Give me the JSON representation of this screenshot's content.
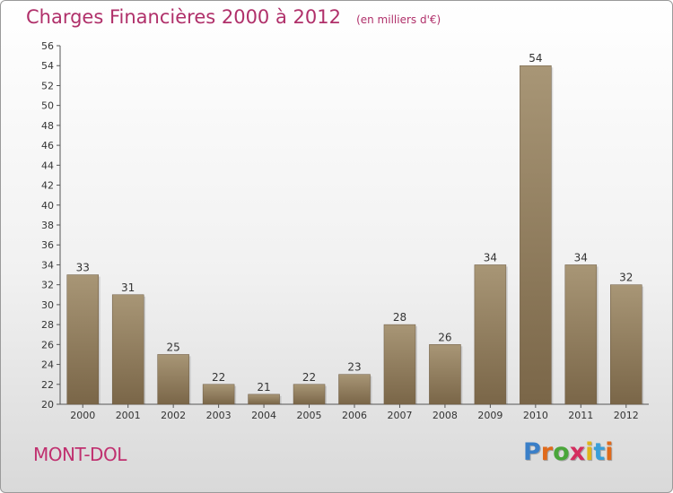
{
  "header": {
    "title": "Charges Financières 2000 à 2012",
    "subtitle": "(en milliers d'€)"
  },
  "footer": {
    "commune": "MONT-DOL",
    "logo_letters": [
      "P",
      "r",
      "o",
      "x",
      "i",
      "t",
      "i"
    ],
    "logo_colors": [
      "#3a7fc8",
      "#e06a1b",
      "#4aa63a",
      "#d42e5f",
      "#e0b51a",
      "#3a9fd8",
      "#e06a1b"
    ]
  },
  "chart_data": {
    "type": "bar",
    "categories": [
      "2000",
      "2001",
      "2002",
      "2003",
      "2004",
      "2005",
      "2006",
      "2007",
      "2008",
      "2009",
      "2010",
      "2011",
      "2012"
    ],
    "values": [
      33,
      31,
      25,
      22,
      21,
      22,
      23,
      28,
      26,
      34,
      54,
      34,
      32
    ],
    "title": "Charges Financières 2000 à 2012",
    "subtitle": "(en milliers d'€)",
    "ylim": [
      20,
      56
    ],
    "ytick_step": 2,
    "grid": false,
    "bar_colors": {
      "light": "#a89676",
      "dark": "#7a6648"
    }
  }
}
